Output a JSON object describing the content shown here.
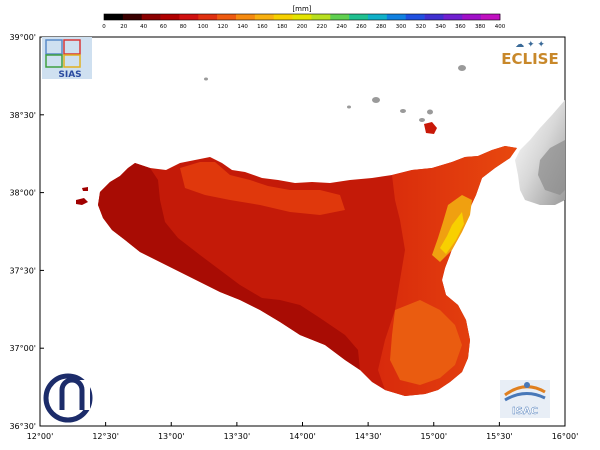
{
  "legend": {
    "unit": "[mm]",
    "ticks": [
      "0",
      "20",
      "40",
      "60",
      "80",
      "100",
      "120",
      "140",
      "160",
      "180",
      "200",
      "220",
      "240",
      "260",
      "280",
      "300",
      "320",
      "340",
      "360",
      "380",
      "400"
    ],
    "colors": [
      "#000000",
      "#3a0000",
      "#8b0000",
      "#b00000",
      "#d01010",
      "#e03010",
      "#ee5a10",
      "#f58a10",
      "#f8b010",
      "#f6d000",
      "#e4e400",
      "#b8e020",
      "#60d050",
      "#20c090",
      "#10b0c8",
      "#1080e0",
      "#2050e0",
      "#4030d0",
      "#7020d0",
      "#a010c8",
      "#c010c0"
    ]
  },
  "axes": {
    "lat_labels": [
      "39°00'",
      "38°30'",
      "38°00'",
      "37°30'",
      "37°00'",
      "36°30'"
    ],
    "lon_labels": [
      "12°00'",
      "12°30'",
      "13°00'",
      "13°30'",
      "14°00'",
      "14°30'",
      "15°00'",
      "15°30'",
      "16°00'"
    ]
  },
  "logos": {
    "sias": "SIAS",
    "eclise": "ECLISE",
    "isac": "ISAC"
  }
}
